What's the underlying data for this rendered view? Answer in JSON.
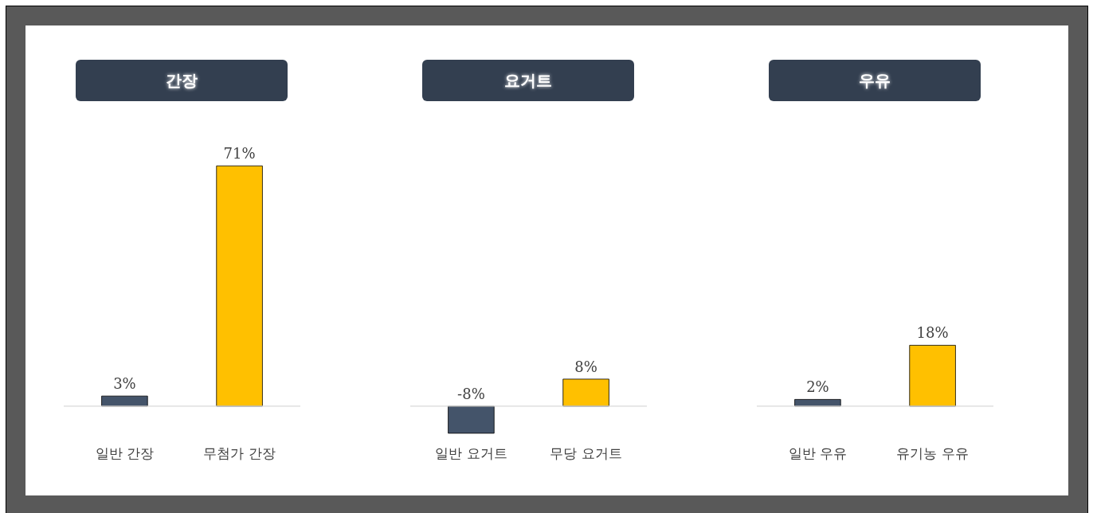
{
  "chart_data": [
    {
      "type": "bar",
      "title": "간장",
      "categories": [
        "일반 간장",
        "무첨가 간장"
      ],
      "values": [
        3,
        71
      ],
      "colors": [
        "#44546a",
        "#ffc000"
      ],
      "value_labels": [
        "3%",
        "71%"
      ]
    },
    {
      "type": "bar",
      "title": "요거트",
      "categories": [
        "일반 요거트",
        "무당 요거트"
      ],
      "values": [
        -8,
        8
      ],
      "colors": [
        "#44546a",
        "#ffc000"
      ],
      "value_labels": [
        "-8%",
        "8%"
      ]
    },
    {
      "type": "bar",
      "title": "우유",
      "categories": [
        "일반 우유",
        "유기농 우유"
      ],
      "values": [
        2,
        18
      ],
      "colors": [
        "#44546a",
        "#ffc000"
      ],
      "value_labels": [
        "2%",
        "18%"
      ]
    }
  ]
}
